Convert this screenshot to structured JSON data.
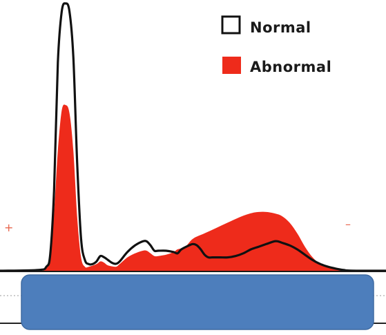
{
  "chart_data": {
    "type": "area",
    "title": "",
    "xlabel": "",
    "ylabel": "",
    "ylim": [
      0,
      100
    ],
    "legend_position": "top-right",
    "grid": false,
    "left_pole_label": "+",
    "right_pole_label": "–",
    "series": [
      {
        "name": "Normal",
        "style": "outline",
        "color": "#111111",
        "points": [
          [
            0,
            0
          ],
          [
            10,
            0.3
          ],
          [
            12,
            1.5
          ],
          [
            13,
            6
          ],
          [
            14,
            30
          ],
          [
            15,
            78
          ],
          [
            16,
            97
          ],
          [
            17,
            100
          ],
          [
            18,
            97
          ],
          [
            19,
            80
          ],
          [
            20,
            40
          ],
          [
            21,
            12
          ],
          [
            22,
            4
          ],
          [
            23,
            2.5
          ],
          [
            24,
            2.5
          ],
          [
            25,
            3.5
          ],
          [
            26,
            5.5
          ],
          [
            27,
            5
          ],
          [
            28,
            4
          ],
          [
            29,
            3
          ],
          [
            30,
            2.6
          ],
          [
            31,
            3.5
          ],
          [
            33,
            7
          ],
          [
            35,
            9.5
          ],
          [
            37,
            11
          ],
          [
            38,
            11
          ],
          [
            39,
            9.5
          ],
          [
            40,
            7.5
          ],
          [
            41,
            7.5
          ],
          [
            43,
            7.5
          ],
          [
            45,
            7
          ],
          [
            46,
            6.5
          ],
          [
            47,
            8
          ],
          [
            49,
            9.5
          ],
          [
            50,
            10
          ],
          [
            51,
            9.5
          ],
          [
            52,
            8
          ],
          [
            53,
            6
          ],
          [
            54,
            5
          ],
          [
            55,
            5
          ],
          [
            57,
            5
          ],
          [
            59,
            5
          ],
          [
            61,
            5.5
          ],
          [
            63,
            6.5
          ],
          [
            65,
            8
          ],
          [
            67,
            9
          ],
          [
            69,
            10
          ],
          [
            71,
            11
          ],
          [
            72,
            11
          ],
          [
            73,
            10.5
          ],
          [
            75,
            9.5
          ],
          [
            77,
            8
          ],
          [
            79,
            6
          ],
          [
            81,
            4
          ],
          [
            83,
            2.5
          ],
          [
            85,
            1.5
          ],
          [
            87,
            0.8
          ],
          [
            89,
            0.3
          ],
          [
            91,
            0.05
          ],
          [
            100,
            0
          ]
        ]
      },
      {
        "name": "Abnormal",
        "style": "filled",
        "color": "#ee2b1b",
        "points": [
          [
            0,
            0
          ],
          [
            10,
            0
          ],
          [
            12,
            1
          ],
          [
            13,
            6
          ],
          [
            14,
            22
          ],
          [
            15,
            45
          ],
          [
            16,
            60
          ],
          [
            17,
            62
          ],
          [
            18,
            59
          ],
          [
            19,
            45
          ],
          [
            20,
            20
          ],
          [
            21,
            5
          ],
          [
            22,
            1.5
          ],
          [
            23,
            1.5
          ],
          [
            25,
            2.5
          ],
          [
            26,
            3.5
          ],
          [
            27,
            3
          ],
          [
            28,
            2
          ],
          [
            30,
            1.5
          ],
          [
            31,
            2.5
          ],
          [
            33,
            5
          ],
          [
            35,
            6.5
          ],
          [
            37,
            7.5
          ],
          [
            38,
            7.5
          ],
          [
            39,
            6.5
          ],
          [
            40,
            5.5
          ],
          [
            41,
            5.5
          ],
          [
            43,
            6
          ],
          [
            45,
            7
          ],
          [
            46,
            8
          ],
          [
            48,
            9
          ],
          [
            50,
            12
          ],
          [
            53,
            14
          ],
          [
            56,
            16
          ],
          [
            59,
            18
          ],
          [
            62,
            20
          ],
          [
            65,
            21.5
          ],
          [
            67,
            22
          ],
          [
            69,
            22
          ],
          [
            71,
            21.5
          ],
          [
            73,
            20.5
          ],
          [
            75,
            18
          ],
          [
            77,
            14
          ],
          [
            79,
            9
          ],
          [
            81,
            5
          ],
          [
            83,
            2.5
          ],
          [
            85,
            1.2
          ],
          [
            87,
            0.5
          ],
          [
            89,
            0.1
          ],
          [
            91,
            0
          ],
          [
            100,
            0
          ]
        ]
      }
    ]
  }
}
